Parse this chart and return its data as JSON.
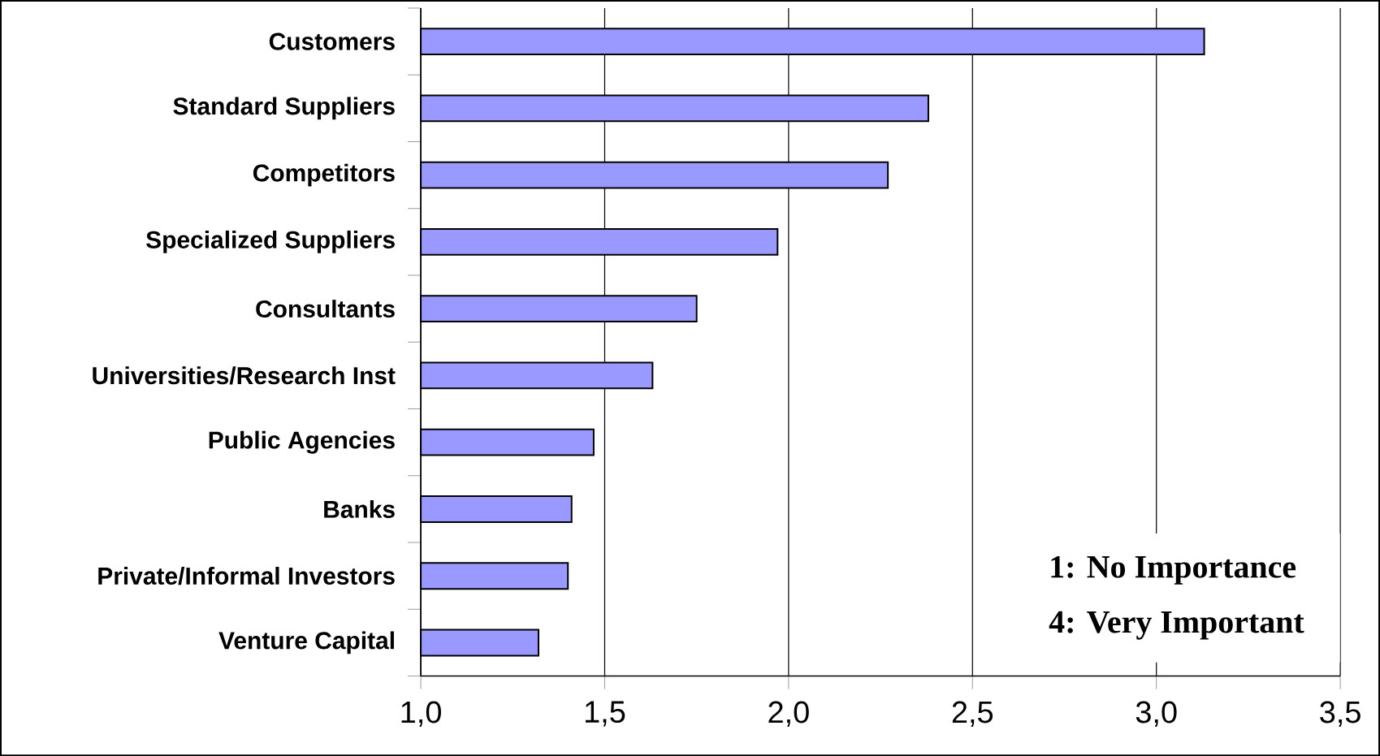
{
  "chart_data": {
    "type": "bar",
    "orientation": "horizontal",
    "categories": [
      "Customers",
      "Standard Suppliers",
      "Competitors",
      "Specialized Suppliers",
      "Consultants",
      "Universities/Research Inst",
      "Public Agencies",
      "Banks",
      "Private/Informal Investors",
      "Venture Capital"
    ],
    "values": [
      3.13,
      2.38,
      2.27,
      1.97,
      1.75,
      1.63,
      1.47,
      1.41,
      1.4,
      1.32
    ],
    "color": "#9999ff",
    "xlim": [
      1.0,
      3.5
    ],
    "xticks": [
      {
        "value": 1.0,
        "label": "1,0"
      },
      {
        "value": 1.5,
        "label": "1,5"
      },
      {
        "value": 2.0,
        "label": "2,0"
      },
      {
        "value": 2.5,
        "label": "2,5"
      },
      {
        "value": 3.0,
        "label": "3,0"
      },
      {
        "value": 3.5,
        "label": "3,5"
      }
    ],
    "grid": "x",
    "annotations": [
      "1: No Importance",
      "4: Very Important"
    ]
  }
}
